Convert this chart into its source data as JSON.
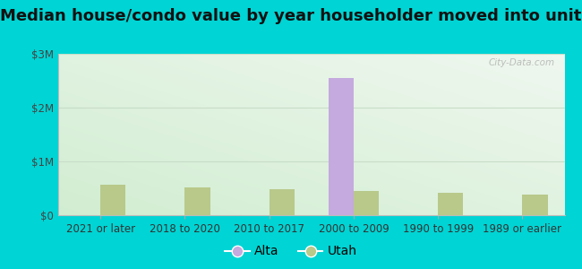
{
  "title": "Median house/condo value by year householder moved into unit",
  "categories": [
    "2021 or later",
    "2018 to 2020",
    "2010 to 2017",
    "2000 to 2009",
    "1990 to 1999",
    "1989 or earlier"
  ],
  "alta_values": [
    0,
    0,
    0,
    2550000,
    0,
    0
  ],
  "utah_values": [
    570000,
    520000,
    490000,
    450000,
    420000,
    380000
  ],
  "alta_color": "#c4aade",
  "utah_color": "#b8c98a",
  "background_outer": "#00d4d4",
  "ylim": [
    0,
    3000000
  ],
  "yticks": [
    0,
    1000000,
    2000000,
    3000000
  ],
  "ytick_labels": [
    "$0",
    "$1M",
    "$2M",
    "$3M"
  ],
  "watermark": "City-Data.com",
  "legend_labels": [
    "Alta",
    "Utah"
  ],
  "legend_marker_colors": [
    "#c4aade",
    "#b8c98a"
  ],
  "bar_width": 0.3,
  "title_fontsize": 13,
  "tick_fontsize": 8.5,
  "legend_fontsize": 10,
  "grid_color": "#d0e8d0",
  "bg_top": "#eaf5ee",
  "bg_bottom": "#d0ecd8"
}
